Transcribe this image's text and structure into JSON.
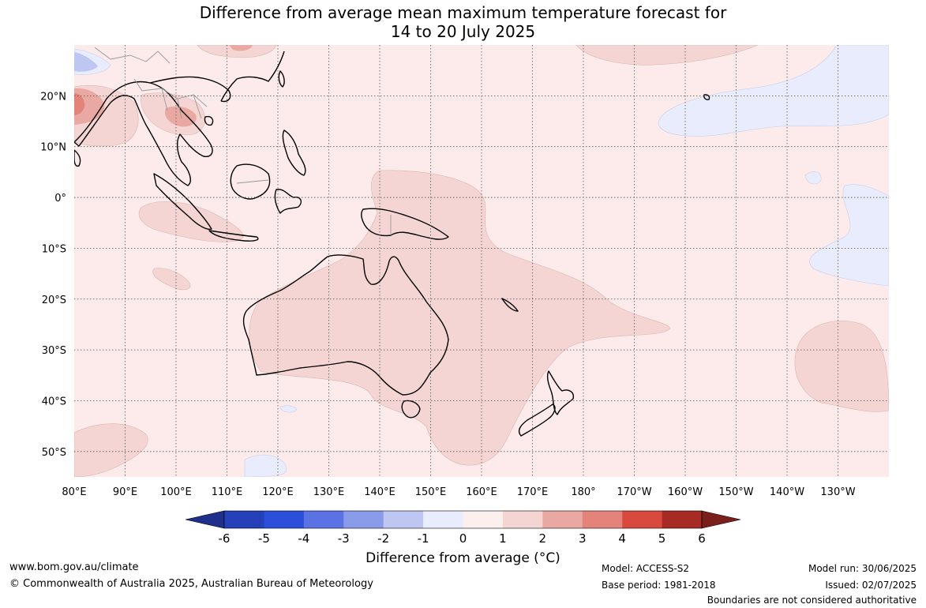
{
  "title": {
    "line1": "Difference from average mean maximum temperature forecast for",
    "line2": "14 to 20 July 2025"
  },
  "map": {
    "lon_labels": [
      "80°E",
      "90°E",
      "100°E",
      "110°E",
      "120°E",
      "130°E",
      "140°E",
      "150°E",
      "160°E",
      "170°E",
      "180°",
      "170°W",
      "160°W",
      "150°W",
      "140°W",
      "130°W"
    ],
    "lat_labels": [
      "20°N",
      "10°N",
      "0°",
      "10°S",
      "20°S",
      "30°S",
      "40°S",
      "50°S"
    ],
    "lon_range": [
      80,
      240
    ],
    "lat_range": [
      -55,
      30
    ],
    "grid": true,
    "colors": {
      "anom_0_1": "#fcebea",
      "anom_1_2": "#f5d5d3",
      "anom_2_3": "#eaa8a2",
      "anom_3_4": "#e4837a",
      "anom_m1_0": "#e8ecfc",
      "anom_m2_m1": "#bec7f2",
      "land_outline": "#000000",
      "border": "#888888"
    }
  },
  "colorbar": {
    "ticks": [
      "-6",
      "-5",
      "-4",
      "-3",
      "-2",
      "-1",
      "0",
      "1",
      "2",
      "3",
      "4",
      "5",
      "6"
    ],
    "colors": [
      "#1f2f8c",
      "#2540b8",
      "#2c4fdb",
      "#5a72e4",
      "#8a9be9",
      "#bec7f2",
      "#e8ecfc",
      "#fcf0ef",
      "#f5d5d3",
      "#eaa8a2",
      "#e4837a",
      "#d94a3e",
      "#a82a24",
      "#7a1f1c"
    ],
    "label": "Difference from average (",
    "label_unit": "°C)"
  },
  "footer": {
    "website": "www.bom.gov.au/climate",
    "copyright": "© Commonwealth of Australia 2025, Australian Bureau of Meteorology",
    "model": "Model: ACCESS-S2",
    "base_period": "Base period: 1981-2018",
    "model_run": "Model run: 30/06/2025",
    "issued": "Issued: 02/07/2025",
    "disclaimer": "Boundaries are not considered authoritative"
  }
}
